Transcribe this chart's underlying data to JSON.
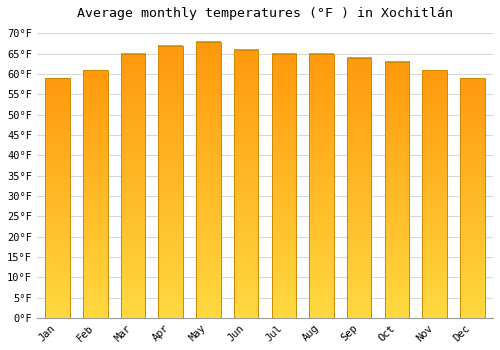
{
  "title": "Average monthly temperatures (°F ) in Xochitlán",
  "months": [
    "Jan",
    "Feb",
    "Mar",
    "Apr",
    "May",
    "Jun",
    "Jul",
    "Aug",
    "Sep",
    "Oct",
    "Nov",
    "Dec"
  ],
  "values": [
    59,
    61,
    65,
    67,
    68,
    66,
    65,
    65,
    64,
    63,
    61,
    59
  ],
  "ytick_values": [
    0,
    5,
    10,
    15,
    20,
    25,
    30,
    35,
    40,
    45,
    50,
    55,
    60,
    65,
    70
  ],
  "ylim": [
    0,
    72
  ],
  "background_color": "#ffffff",
  "grid_color": "#d0d0d0",
  "title_fontsize": 9.5,
  "tick_fontsize": 7.5,
  "bar_color_bottom": "#FFD840",
  "bar_color_top": "#FFA010",
  "bar_edge_color": "#CC8800"
}
